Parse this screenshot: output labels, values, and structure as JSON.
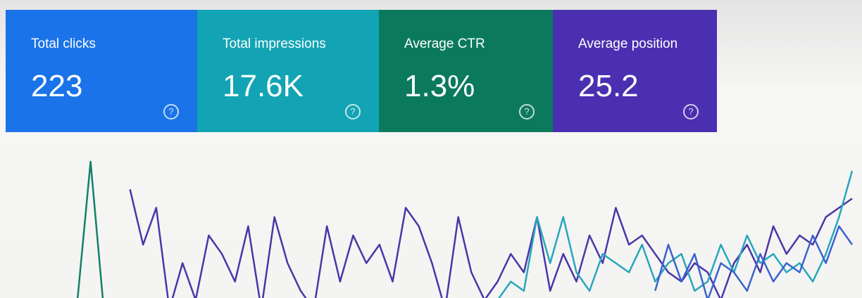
{
  "cards": [
    {
      "label": "Total clicks",
      "value": "223",
      "color": "#1a73e8"
    },
    {
      "label": "Total impressions",
      "value": "17.6K",
      "color": "#12a4b4"
    },
    {
      "label": "Average CTR",
      "value": "1.3%",
      "color": "#0b7a5c"
    },
    {
      "label": "Average position",
      "value": "25.2",
      "color": "#4a2fb0"
    }
  ],
  "chart_data": {
    "type": "line",
    "series": [
      {
        "color": "#4a36a8",
        "values": [
          null,
          null,
          null,
          null,
          70,
          40,
          60,
          5,
          30,
          10,
          45,
          35,
          20,
          50,
          5,
          55,
          30,
          15,
          5,
          50,
          20,
          45,
          30,
          40,
          20,
          60,
          50,
          30,
          5,
          55,
          25,
          10,
          20,
          35,
          25,
          55,
          15,
          35,
          20,
          45,
          30,
          60,
          40,
          45,
          35,
          25,
          20,
          30,
          25,
          10,
          30,
          40,
          25,
          50,
          35,
          45,
          40,
          55,
          60,
          65
        ]
      },
      {
        "color": "#27a6bd",
        "values": [
          null,
          null,
          null,
          null,
          null,
          null,
          null,
          null,
          null,
          null,
          null,
          null,
          null,
          null,
          null,
          null,
          null,
          null,
          null,
          null,
          null,
          null,
          null,
          null,
          null,
          null,
          null,
          null,
          null,
          null,
          null,
          null,
          10,
          20,
          15,
          55,
          30,
          55,
          25,
          15,
          35,
          30,
          25,
          40,
          20,
          30,
          35,
          15,
          20,
          40,
          25,
          45,
          30,
          35,
          25,
          30,
          20,
          35,
          55,
          80
        ]
      },
      {
        "color": "#12806a",
        "values": [
          10,
          85,
          5,
          null,
          null,
          null,
          null,
          null,
          null,
          null,
          null,
          null,
          null,
          null,
          null,
          null,
          null,
          null,
          null,
          null,
          null,
          null,
          null,
          null,
          null,
          null,
          null,
          null,
          null,
          null,
          null,
          null,
          null,
          null,
          null,
          null,
          null,
          null,
          null,
          null,
          null,
          null,
          null,
          null,
          null,
          null,
          null,
          null,
          null,
          null,
          null,
          null,
          null,
          null,
          null,
          null,
          null,
          null,
          null,
          null
        ]
      },
      {
        "color": "#3a62d0",
        "values": [
          null,
          null,
          null,
          null,
          null,
          null,
          null,
          null,
          null,
          null,
          null,
          null,
          null,
          null,
          null,
          null,
          null,
          null,
          null,
          null,
          null,
          null,
          null,
          null,
          null,
          null,
          null,
          null,
          null,
          null,
          null,
          null,
          null,
          null,
          null,
          null,
          null,
          null,
          null,
          null,
          null,
          null,
          null,
          null,
          15,
          40,
          20,
          35,
          10,
          30,
          25,
          15,
          35,
          20,
          30,
          25,
          45,
          30,
          50,
          40
        ]
      }
    ]
  }
}
